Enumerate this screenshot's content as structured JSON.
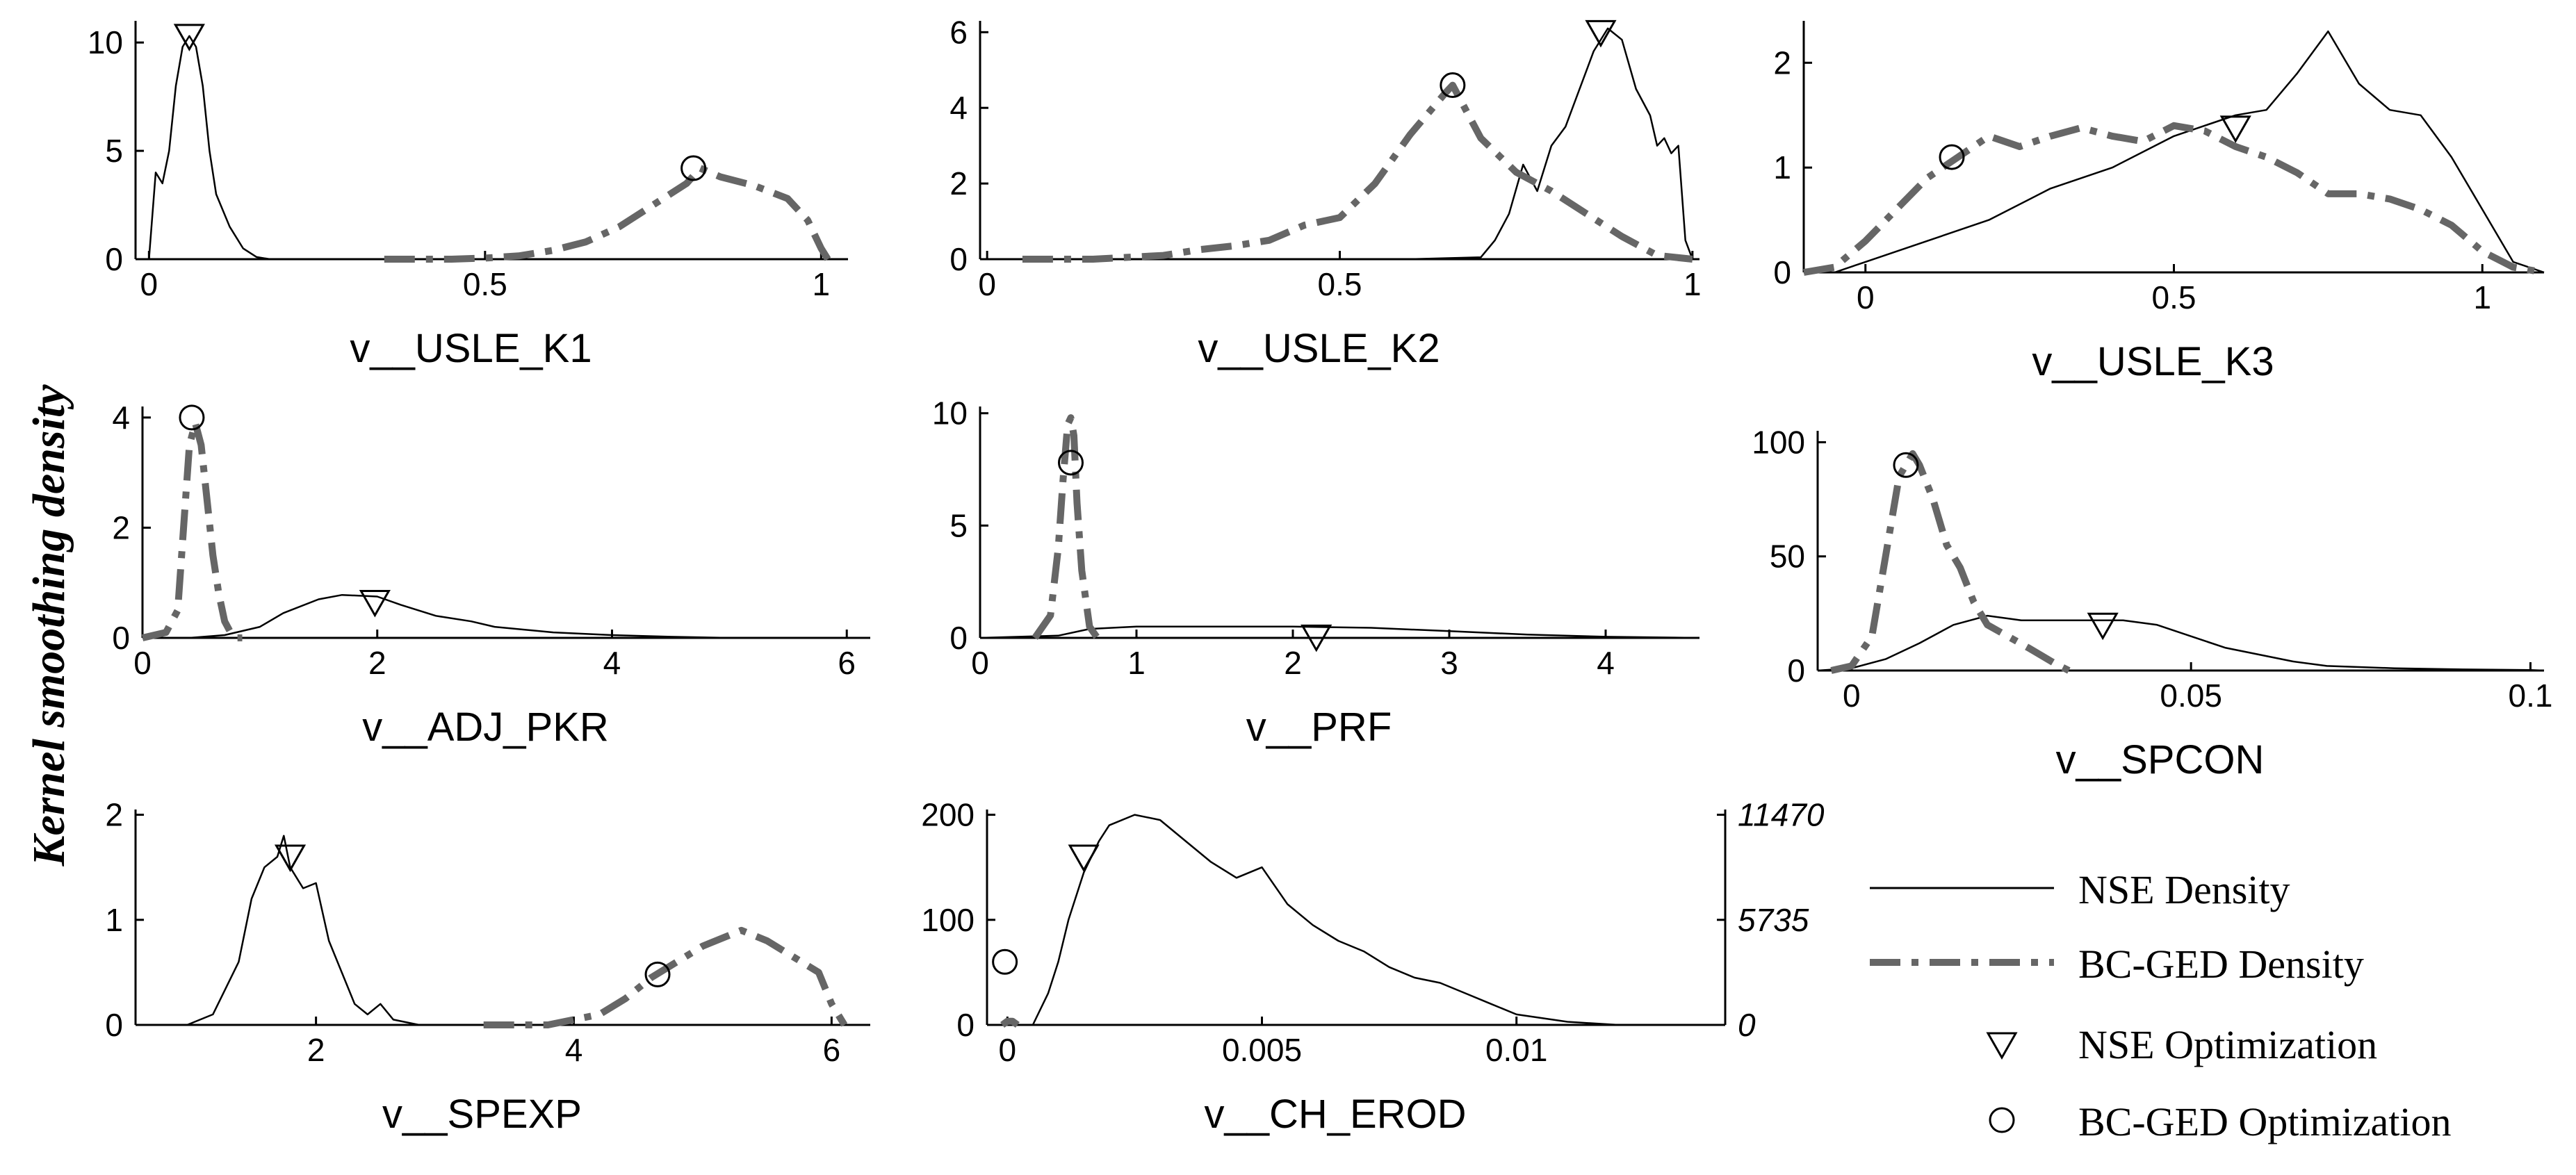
{
  "figure": {
    "ylabel": "Kernel smoothing density",
    "legend": {
      "position": "bottom-right",
      "entries": [
        {
          "label": "NSE Density",
          "kind": "line"
        },
        {
          "label": "BC-GED Density",
          "kind": "dashdot"
        },
        {
          "label": "NSE Optimization",
          "kind": "triangle"
        },
        {
          "label": "BC-GED Optimization",
          "kind": "circle"
        }
      ]
    },
    "colors": {
      "nse": "#000000",
      "bcged": "#666666"
    }
  },
  "chart_data": [
    {
      "type": "line",
      "xlabel": "v__USLE_K1",
      "xlim": [
        -0.02,
        1.04
      ],
      "ylim": [
        0,
        11
      ],
      "xticks": [
        0,
        0.5,
        1
      ],
      "xticklabels": [
        "0",
        "0.5",
        "1"
      ],
      "yticks": [
        0,
        5,
        10
      ],
      "yticklabels": [
        "0",
        "5",
        "10"
      ],
      "series": [
        {
          "name": "NSE Density",
          "x": [
            0,
            0.01,
            0.02,
            0.03,
            0.04,
            0.05,
            0.06,
            0.07,
            0.08,
            0.09,
            0.1,
            0.12,
            0.14,
            0.16,
            0.18,
            0.2
          ],
          "y": [
            0,
            4,
            3.5,
            5,
            8,
            9.8,
            10.3,
            9.8,
            8,
            5,
            3,
            1.5,
            0.5,
            0.1,
            0,
            0
          ]
        },
        {
          "name": "BC-GED Density",
          "x": [
            0.35,
            0.45,
            0.5,
            0.55,
            0.6,
            0.65,
            0.7,
            0.75,
            0.8,
            0.82,
            0.85,
            0.9,
            0.95,
            0.98,
            1.0,
            1.01
          ],
          "y": [
            0,
            0,
            0.05,
            0.15,
            0.4,
            0.8,
            1.5,
            2.5,
            3.5,
            4.2,
            3.8,
            3.4,
            2.8,
            1.8,
            0.5,
            0
          ]
        }
      ],
      "markers": {
        "nse_opt": [
          0.06,
          10.3
        ],
        "bcged_opt": [
          0.81,
          4.2
        ]
      }
    },
    {
      "type": "line",
      "xlabel": "v__USLE_K2",
      "xlim": [
        -0.01,
        1.01
      ],
      "ylim": [
        0,
        6.3
      ],
      "xticks": [
        0,
        0.5,
        1
      ],
      "xticklabels": [
        "0",
        "0.5",
        "1"
      ],
      "yticks": [
        0,
        2,
        4,
        6
      ],
      "yticklabels": [
        "0",
        "2",
        "4",
        "6"
      ],
      "series": [
        {
          "name": "NSE Density",
          "x": [
            0.6,
            0.7,
            0.72,
            0.74,
            0.76,
            0.78,
            0.8,
            0.82,
            0.84,
            0.86,
            0.88,
            0.9,
            0.92,
            0.94,
            0.95,
            0.96,
            0.97,
            0.98,
            0.99,
            1.0
          ],
          "y": [
            0,
            0.05,
            0.5,
            1.2,
            2.5,
            1.8,
            3.0,
            3.5,
            4.5,
            5.5,
            6.1,
            5.8,
            4.5,
            3.8,
            3.0,
            3.2,
            2.8,
            3.0,
            0.5,
            0
          ]
        },
        {
          "name": "BC-GED Density",
          "x": [
            0.05,
            0.15,
            0.2,
            0.25,
            0.3,
            0.35,
            0.4,
            0.45,
            0.5,
            0.55,
            0.6,
            0.65,
            0.66,
            0.7,
            0.75,
            0.8,
            0.85,
            0.9,
            0.95,
            1.0
          ],
          "y": [
            0,
            0,
            0.05,
            0.1,
            0.25,
            0.35,
            0.5,
            0.9,
            1.1,
            2.0,
            3.3,
            4.4,
            4.6,
            3.2,
            2.3,
            1.8,
            1.2,
            0.6,
            0.1,
            0
          ]
        }
      ],
      "markers": {
        "nse_opt": [
          0.87,
          6.0
        ],
        "bcged_opt": [
          0.66,
          4.6
        ]
      }
    },
    {
      "type": "line",
      "xlabel": "v__USLE_K3",
      "xlim": [
        -0.1,
        1.1
      ],
      "ylim": [
        0,
        2.4
      ],
      "xticks": [
        0,
        0.5,
        1
      ],
      "xticklabels": [
        "0",
        "0.5",
        "1"
      ],
      "yticks": [
        0,
        1,
        2
      ],
      "yticklabels": [
        "0",
        "1",
        "2"
      ],
      "series": [
        {
          "name": "NSE Density",
          "x": [
            -0.1,
            -0.05,
            0,
            0.1,
            0.2,
            0.3,
            0.4,
            0.5,
            0.55,
            0.6,
            0.65,
            0.7,
            0.75,
            0.8,
            0.85,
            0.9,
            0.95,
            1.0,
            1.05,
            1.1
          ],
          "y": [
            0,
            0,
            0.1,
            0.3,
            0.5,
            0.8,
            1.0,
            1.3,
            1.4,
            1.5,
            1.55,
            1.9,
            2.3,
            1.8,
            1.55,
            1.5,
            1.1,
            0.6,
            0.1,
            0
          ]
        },
        {
          "name": "BC-GED Density",
          "x": [
            -0.1,
            -0.05,
            0,
            0.05,
            0.1,
            0.15,
            0.2,
            0.25,
            0.3,
            0.35,
            0.4,
            0.45,
            0.5,
            0.55,
            0.6,
            0.65,
            0.7,
            0.75,
            0.8,
            0.85,
            0.9,
            0.95,
            1.0,
            1.05,
            1.1
          ],
          "y": [
            0,
            0.05,
            0.3,
            0.6,
            0.9,
            1.1,
            1.3,
            1.2,
            1.3,
            1.38,
            1.3,
            1.25,
            1.4,
            1.35,
            1.2,
            1.1,
            0.95,
            0.75,
            0.75,
            0.7,
            0.6,
            0.45,
            0.2,
            0.05,
            0
          ]
        }
      ],
      "markers": {
        "nse_opt": [
          0.6,
          1.38
        ],
        "bcged_opt": [
          0.14,
          1.1
        ]
      }
    },
    {
      "type": "line",
      "xlabel": "v__ADJ_PKR",
      "xlim": [
        0,
        6.2
      ],
      "ylim": [
        0,
        4.2
      ],
      "xticks": [
        0,
        2,
        4,
        6
      ],
      "xticklabels": [
        "0",
        "2",
        "4",
        "6"
      ],
      "yticks": [
        0,
        2,
        4
      ],
      "yticklabels": [
        "0",
        "2",
        "4"
      ],
      "series": [
        {
          "name": "NSE Density",
          "x": [
            0.4,
            0.7,
            1.0,
            1.2,
            1.5,
            1.7,
            2.0,
            2.2,
            2.5,
            2.8,
            3.0,
            3.5,
            4.0,
            4.5,
            5.0,
            6.2
          ],
          "y": [
            0,
            0.05,
            0.2,
            0.45,
            0.7,
            0.78,
            0.75,
            0.6,
            0.4,
            0.3,
            0.2,
            0.1,
            0.05,
            0.02,
            0,
            0
          ]
        },
        {
          "name": "BC-GED Density",
          "x": [
            0,
            0.2,
            0.3,
            0.35,
            0.4,
            0.45,
            0.5,
            0.55,
            0.6,
            0.65,
            0.7,
            0.75,
            0.8,
            0.85
          ],
          "y": [
            0,
            0.1,
            0.5,
            2.0,
            3.5,
            3.9,
            3.5,
            2.5,
            1.5,
            0.8,
            0.3,
            0.1,
            0,
            0
          ]
        }
      ],
      "markers": {
        "nse_opt": [
          1.98,
          0.65
        ],
        "bcged_opt": [
          0.42,
          4.0
        ]
      }
    },
    {
      "type": "line",
      "xlabel": "v__PRF",
      "xlim": [
        0,
        4.6
      ],
      "ylim": [
        0,
        10.3
      ],
      "xticks": [
        0,
        1,
        2,
        3,
        4
      ],
      "xticklabels": [
        "0",
        "1",
        "2",
        "3",
        "4"
      ],
      "yticks": [
        0,
        5,
        10
      ],
      "yticklabels": [
        "0",
        "5",
        "10"
      ],
      "series": [
        {
          "name": "NSE Density",
          "x": [
            0,
            0.5,
            0.7,
            1.0,
            1.5,
            2.0,
            2.5,
            3.0,
            3.5,
            4.0,
            4.6
          ],
          "y": [
            0,
            0.1,
            0.4,
            0.5,
            0.5,
            0.5,
            0.45,
            0.3,
            0.15,
            0.05,
            0
          ]
        },
        {
          "name": "BC-GED Density",
          "x": [
            0.35,
            0.45,
            0.5,
            0.53,
            0.56,
            0.58,
            0.6,
            0.62,
            0.65,
            0.7,
            0.75
          ],
          "y": [
            0,
            1,
            4,
            7,
            9.5,
            9.8,
            9,
            6,
            3,
            0.5,
            0
          ]
        }
      ],
      "markers": {
        "nse_opt": [
          2.15,
          0.05
        ],
        "bcged_opt": [
          0.58,
          7.8
        ]
      }
    },
    {
      "type": "line",
      "xlabel": "v__SPCON",
      "xlim": [
        -0.005,
        0.102
      ],
      "ylim": [
        0,
        105
      ],
      "xticks": [
        0,
        0.05,
        0.1
      ],
      "xticklabels": [
        "0",
        "0.05",
        "0.1"
      ],
      "yticks": [
        0,
        50,
        100
      ],
      "yticklabels": [
        "0",
        "50",
        "100"
      ],
      "series": [
        {
          "name": "NSE Density",
          "x": [
            -0.005,
            0,
            0.005,
            0.01,
            0.015,
            0.02,
            0.025,
            0.03,
            0.035,
            0.04,
            0.045,
            0.05,
            0.055,
            0.06,
            0.065,
            0.07,
            0.08,
            0.09,
            0.1,
            0.102
          ],
          "y": [
            0,
            1,
            5,
            12,
            20,
            24,
            22,
            22,
            22,
            22,
            20,
            15,
            10,
            7,
            4,
            2,
            1,
            0.5,
            0.2,
            0
          ]
        },
        {
          "name": "BC-GED Density",
          "x": [
            -0.003,
            0,
            0.003,
            0.005,
            0.007,
            0.009,
            0.01,
            0.012,
            0.014,
            0.016,
            0.018,
            0.02,
            0.023,
            0.026,
            0.03,
            0.032
          ],
          "y": [
            0,
            2,
            15,
            50,
            85,
            95,
            90,
            75,
            55,
            45,
            30,
            20,
            15,
            10,
            3,
            0
          ]
        }
      ],
      "markers": {
        "nse_opt": [
          0.037,
          20
        ],
        "bcged_opt": [
          0.008,
          90
        ]
      }
    },
    {
      "type": "line",
      "xlabel": "v__SPEXP",
      "xlim": [
        0.6,
        6.3
      ],
      "ylim": [
        0,
        2.05
      ],
      "xticks": [
        2,
        4,
        6
      ],
      "xticklabels": [
        "2",
        "4",
        "6"
      ],
      "yticks": [
        0,
        1,
        2
      ],
      "yticklabels": [
        "0",
        "1",
        "2"
      ],
      "series": [
        {
          "name": "NSE Density",
          "x": [
            1.0,
            1.2,
            1.4,
            1.5,
            1.6,
            1.7,
            1.75,
            1.8,
            1.9,
            2.0,
            2.1,
            2.2,
            2.3,
            2.4,
            2.5,
            2.6,
            2.8
          ],
          "y": [
            0,
            0.1,
            0.6,
            1.2,
            1.5,
            1.6,
            1.8,
            1.5,
            1.3,
            1.35,
            0.8,
            0.5,
            0.2,
            0.1,
            0.2,
            0.05,
            0
          ]
        },
        {
          "name": "BC-GED Density",
          "x": [
            3.3,
            3.8,
            4.0,
            4.2,
            4.4,
            4.6,
            4.8,
            5.0,
            5.2,
            5.3,
            5.5,
            5.7,
            5.9,
            6.0,
            6.1
          ],
          "y": [
            0,
            0,
            0.05,
            0.1,
            0.25,
            0.45,
            0.6,
            0.75,
            0.85,
            0.9,
            0.8,
            0.65,
            0.5,
            0.2,
            0
          ]
        }
      ],
      "markers": {
        "nse_opt": [
          1.8,
          1.6
        ],
        "bcged_opt": [
          4.65,
          0.48
        ]
      }
    },
    {
      "type": "line",
      "xlabel": "v__CH_EROD",
      "xlim": [
        -0.0004,
        0.0141
      ],
      "ylim": [
        0,
        205
      ],
      "xticks": [
        0,
        0.005,
        0.01
      ],
      "xticklabels": [
        "0",
        "0.005",
        "0.01"
      ],
      "yticks": [
        0,
        100,
        200
      ],
      "yticklabels": [
        "0",
        "100",
        "200"
      ],
      "y2lim": [
        0,
        11757
      ],
      "y2ticks": [
        0,
        5735,
        11470
      ],
      "y2ticklabels": [
        "0",
        "5735",
        "11470"
      ],
      "series": [
        {
          "name": "NSE Density",
          "x": [
            0.0005,
            0.0008,
            0.001,
            0.0012,
            0.0015,
            0.0018,
            0.002,
            0.0025,
            0.003,
            0.0035,
            0.004,
            0.0045,
            0.005,
            0.0055,
            0.006,
            0.0065,
            0.007,
            0.0075,
            0.008,
            0.0085,
            0.009,
            0.0095,
            0.01,
            0.011,
            0.012,
            0.0141
          ],
          "y": [
            0,
            30,
            60,
            100,
            145,
            175,
            190,
            200,
            195,
            175,
            155,
            140,
            150,
            115,
            95,
            80,
            70,
            55,
            45,
            40,
            30,
            20,
            10,
            3,
            0,
            0
          ]
        },
        {
          "name": "BC-GED Density",
          "x": [
            -0.0001,
            0,
            0.0001,
            0.0002
          ],
          "y": [
            0,
            200,
            200,
            0
          ],
          "axis": "right"
        }
      ],
      "markers": {
        "nse_opt": [
          0.0015,
          160
        ],
        "bcged_opt": [
          -5e-05,
          60
        ]
      }
    }
  ]
}
